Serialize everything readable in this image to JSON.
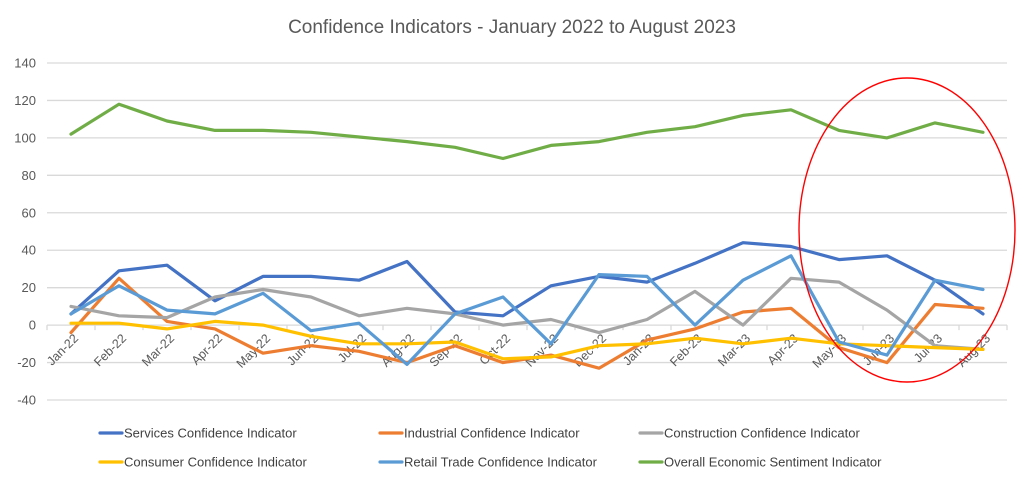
{
  "chart_data": {
    "type": "line",
    "title": "Confidence Indicators - January 2022 to August 2023",
    "xlabel": "",
    "ylabel": "",
    "ylim": [
      -40,
      140
    ],
    "yticks": [
      "140",
      "120",
      "100",
      "80",
      "60",
      "40",
      "20",
      "0",
      "-20",
      "-40"
    ],
    "ytick_values": [
      140,
      120,
      100,
      80,
      60,
      40,
      20,
      0,
      -20,
      -40
    ],
    "grid": true,
    "legend_position": "bottom",
    "categories": [
      "Jan-22",
      "Feb-22",
      "Mar-22",
      "Apr-22",
      "May-22",
      "Jun-22",
      "Jul-22",
      "Aug-22",
      "Sep-22",
      "Oct-22",
      "Nov-22",
      "Dec-22",
      "Jan-23",
      "Feb-23",
      "Mar-23",
      "Apr-23",
      "May-23",
      "Jun-23",
      "Jul-23",
      "Aug-23"
    ],
    "series": [
      {
        "name": "Services Confidence Indicator",
        "color": "#4472C4",
        "values": [
          6,
          29,
          32,
          13,
          26,
          26,
          24,
          34,
          7,
          5,
          21,
          26,
          23,
          33,
          44,
          42,
          35,
          37,
          24,
          6
        ]
      },
      {
        "name": "Industrial Confidence Indicator",
        "color": "#ED7D31",
        "values": [
          -4,
          25,
          2,
          -2,
          -15,
          -11,
          -14,
          -20,
          -11,
          -20,
          -16,
          -23,
          -8,
          -2,
          7,
          9,
          -12,
          -20,
          11,
          9
        ]
      },
      {
        "name": "Construction Confidence Indicator",
        "color": "#A5A5A5",
        "values": [
          10,
          5,
          4,
          15,
          19,
          15,
          5,
          9,
          6,
          0,
          3,
          -4,
          3,
          18,
          0,
          25,
          23,
          8,
          -11,
          -13
        ]
      },
      {
        "name": "Consumer Confidence Indicator",
        "color": "#FFC000",
        "values": [
          1,
          1,
          -2,
          2,
          0,
          -6,
          -10,
          -10,
          -9,
          -18,
          -17,
          -11,
          -10,
          -7,
          -10,
          -7,
          -10,
          -11,
          -12,
          -13
        ]
      },
      {
        "name": "Retail Trade Confidence Indicator",
        "color": "#5B9BD5",
        "values": [
          6,
          21,
          8,
          6,
          17,
          -3,
          1,
          -21,
          6,
          15,
          -10,
          27,
          26,
          0,
          24,
          37,
          -9,
          -16,
          24,
          19
        ]
      },
      {
        "name": "Overall Economic Sentiment Indicator",
        "color": "#70AD47",
        "values": [
          102,
          118,
          109,
          104,
          104,
          103,
          100.5,
          98,
          95,
          89,
          96,
          98,
          103,
          106,
          112,
          115,
          104,
          100,
          108,
          103
        ]
      }
    ],
    "annotations": [
      {
        "type": "ellipse",
        "color": "#FF0000",
        "highlights": [
          "May-23",
          "Jun-23",
          "Jul-23",
          "Aug-23"
        ]
      }
    ]
  }
}
